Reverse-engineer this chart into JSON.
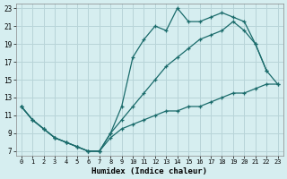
{
  "xlabel": "Humidex (Indice chaleur)",
  "bg_color": "#d6eef0",
  "grid_color": "#b8d4d8",
  "line_color": "#1a6b6b",
  "xlim": [
    -0.5,
    23.5
  ],
  "ylim": [
    6.5,
    23.5
  ],
  "xticks": [
    0,
    1,
    2,
    3,
    4,
    5,
    6,
    7,
    8,
    9,
    10,
    11,
    12,
    13,
    14,
    15,
    16,
    17,
    18,
    19,
    20,
    21,
    22,
    23
  ],
  "yticks": [
    7,
    9,
    11,
    13,
    15,
    17,
    19,
    21,
    23
  ],
  "line1_x": [
    0,
    1,
    2,
    3,
    4,
    5,
    6,
    7,
    8,
    9,
    10,
    11,
    12,
    13,
    14,
    15,
    16,
    17,
    18,
    19,
    20,
    21,
    22
  ],
  "line1_y": [
    12,
    10.5,
    9.5,
    8.5,
    8.0,
    7.5,
    7.0,
    7.0,
    9.0,
    12.0,
    17.5,
    19.5,
    21.0,
    20.5,
    23.0,
    21.5,
    21.5,
    22.0,
    22.5,
    22.0,
    21.5,
    19.0,
    16.0
  ],
  "line2_x": [
    0,
    1,
    2,
    3,
    4,
    5,
    6,
    7,
    8,
    9,
    10,
    11,
    12,
    13,
    14,
    15,
    16,
    17,
    18,
    19,
    20,
    21,
    22,
    23
  ],
  "line2_y": [
    12,
    10.5,
    9.5,
    8.5,
    8.0,
    7.5,
    7.0,
    7.0,
    9.0,
    10.5,
    12.0,
    13.5,
    15.0,
    16.5,
    17.5,
    18.5,
    19.5,
    20.0,
    20.5,
    21.5,
    20.5,
    19.0,
    16.0,
    14.5
  ],
  "line3_x": [
    0,
    1,
    2,
    3,
    4,
    5,
    6,
    7,
    8,
    9,
    10,
    11,
    12,
    13,
    14,
    15,
    16,
    17,
    18,
    19,
    20,
    21,
    22,
    23
  ],
  "line3_y": [
    12,
    10.5,
    9.5,
    8.5,
    8.0,
    7.5,
    7.0,
    7.0,
    8.5,
    9.5,
    10.0,
    10.5,
    11.0,
    11.5,
    11.5,
    12.0,
    12.0,
    12.5,
    13.0,
    13.5,
    13.5,
    14.0,
    14.5,
    14.5
  ]
}
